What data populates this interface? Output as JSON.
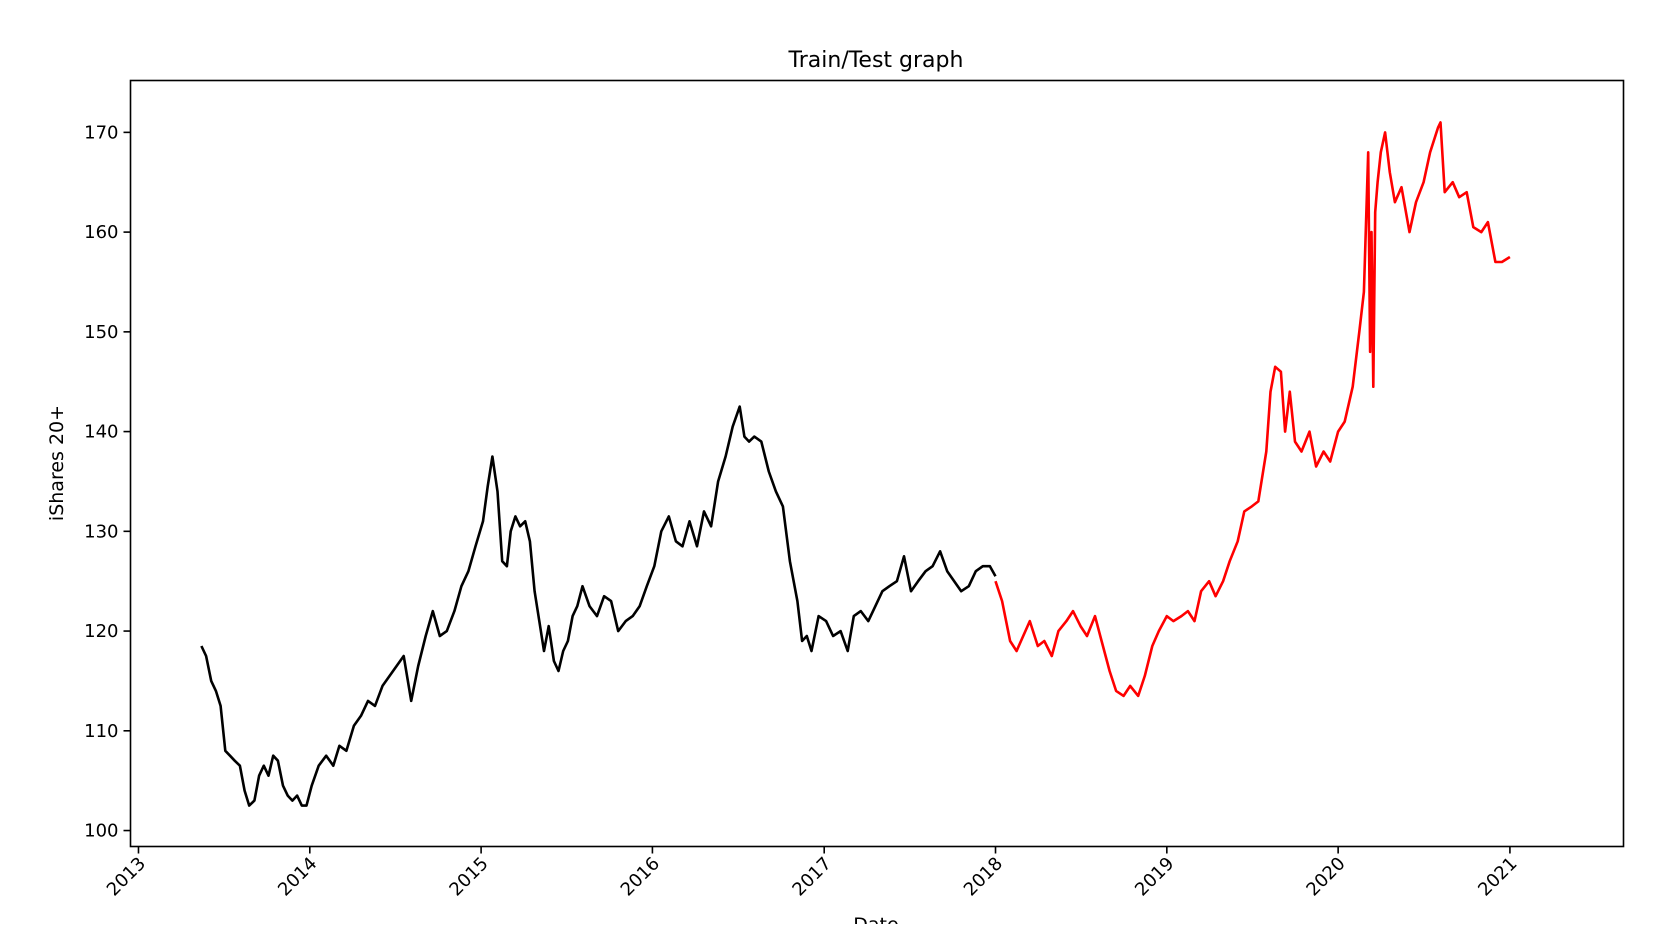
{
  "chart_data": {
    "type": "line",
    "title": "Train/Test graph",
    "xlabel": "Date",
    "ylabel": "iShares 20+",
    "xlim": [
      "2012-12-15",
      "2021-08-31"
    ],
    "ylim": [
      98.4,
      175.2
    ],
    "x_ticks": [
      "2013",
      "2014",
      "2015",
      "2016",
      "2017",
      "2018",
      "2019",
      "2020",
      "2021"
    ],
    "y_ticks": [
      100,
      110,
      120,
      130,
      140,
      150,
      160,
      170
    ],
    "grid": false,
    "legend": "none",
    "series": [
      {
        "color": "#000000",
        "x": [
          "2013-05-15",
          "2013-05-25",
          "2013-06-05",
          "2013-06-15",
          "2013-06-25",
          "2013-07-05",
          "2013-07-15",
          "2013-07-25",
          "2013-08-05",
          "2013-08-15",
          "2013-08-25",
          "2013-09-05",
          "2013-09-15",
          "2013-09-25",
          "2013-10-05",
          "2013-10-15",
          "2013-10-25",
          "2013-11-05",
          "2013-11-15",
          "2013-11-25",
          "2013-12-05",
          "2013-12-15",
          "2013-12-25",
          "2014-01-05",
          "2014-01-20",
          "2014-02-05",
          "2014-02-20",
          "2014-03-05",
          "2014-03-20",
          "2014-04-05",
          "2014-04-20",
          "2014-05-05",
          "2014-05-20",
          "2014-06-05",
          "2014-06-20",
          "2014-07-05",
          "2014-07-20",
          "2014-08-05",
          "2014-08-20",
          "2014-09-05",
          "2014-09-20",
          "2014-10-05",
          "2014-10-20",
          "2014-11-05",
          "2014-11-20",
          "2014-12-05",
          "2014-12-20",
          "2015-01-05",
          "2015-01-15",
          "2015-01-25",
          "2015-02-05",
          "2015-02-15",
          "2015-02-25",
          "2015-03-05",
          "2015-03-15",
          "2015-03-25",
          "2015-04-05",
          "2015-04-15",
          "2015-04-25",
          "2015-05-05",
          "2015-05-15",
          "2015-05-25",
          "2015-06-05",
          "2015-06-15",
          "2015-06-25",
          "2015-07-05",
          "2015-07-15",
          "2015-07-25",
          "2015-08-05",
          "2015-08-20",
          "2015-09-05",
          "2015-09-20",
          "2015-10-05",
          "2015-10-20",
          "2015-11-05",
          "2015-11-20",
          "2015-12-05",
          "2015-12-20",
          "2016-01-05",
          "2016-01-20",
          "2016-02-05",
          "2016-02-20",
          "2016-03-05",
          "2016-03-20",
          "2016-04-05",
          "2016-04-20",
          "2016-05-05",
          "2016-05-20",
          "2016-06-05",
          "2016-06-20",
          "2016-07-05",
          "2016-07-15",
          "2016-07-25",
          "2016-08-05",
          "2016-08-20",
          "2016-09-05",
          "2016-09-20",
          "2016-10-05",
          "2016-10-20",
          "2016-11-05",
          "2016-11-15",
          "2016-11-25",
          "2016-12-05",
          "2016-12-20",
          "2017-01-05",
          "2017-01-20",
          "2017-02-05",
          "2017-02-20",
          "2017-03-05",
          "2017-03-20",
          "2017-04-05",
          "2017-04-20",
          "2017-05-05",
          "2017-05-20",
          "2017-06-05",
          "2017-06-20",
          "2017-07-05",
          "2017-07-20",
          "2017-08-05",
          "2017-08-20",
          "2017-09-05",
          "2017-09-20",
          "2017-10-05",
          "2017-10-20",
          "2017-11-05",
          "2017-11-20",
          "2017-12-05",
          "2017-12-20",
          "2018-01-01"
        ],
        "values": [
          118.5,
          117.5,
          115.0,
          114.0,
          112.5,
          108.0,
          107.5,
          107.0,
          106.5,
          104.0,
          102.5,
          103.0,
          105.5,
          106.5,
          105.5,
          107.5,
          107.0,
          104.5,
          103.5,
          103.0,
          103.5,
          102.5,
          102.5,
          104.5,
          106.5,
          107.5,
          106.5,
          108.5,
          108.0,
          110.5,
          111.5,
          113.0,
          112.5,
          114.5,
          115.5,
          116.5,
          117.5,
          113.0,
          116.5,
          119.5,
          122.0,
          119.5,
          120.0,
          122.0,
          124.5,
          126.0,
          128.5,
          131.0,
          134.5,
          137.5,
          134.0,
          127.0,
          126.5,
          130.0,
          131.5,
          130.5,
          131.0,
          129.0,
          124.0,
          121.0,
          118.0,
          120.5,
          117.0,
          116.0,
          118.0,
          119.0,
          121.5,
          122.5,
          124.5,
          122.5,
          121.5,
          123.5,
          123.0,
          120.0,
          121.0,
          121.5,
          122.5,
          124.5,
          126.5,
          130.0,
          131.5,
          129.0,
          128.5,
          131.0,
          128.5,
          132.0,
          130.5,
          135.0,
          137.5,
          140.5,
          142.5,
          139.5,
          139.0,
          139.5,
          139.0,
          136.0,
          134.0,
          132.5,
          127.0,
          123.0,
          119.0,
          119.5,
          118.0,
          121.5,
          121.0,
          119.5,
          120.0,
          118.0,
          121.5,
          122.0,
          121.0,
          122.5,
          124.0,
          124.5,
          125.0,
          127.5,
          124.0,
          125.0,
          126.0,
          126.5,
          128.0,
          126.0,
          125.0,
          124.0,
          124.5,
          126.0,
          126.5,
          126.5,
          125.5
        ]
      },
      {
        "color": "#ff0000",
        "x": [
          "2018-01-01",
          "2018-01-15",
          "2018-02-01",
          "2018-02-15",
          "2018-03-01",
          "2018-03-15",
          "2018-04-01",
          "2018-04-15",
          "2018-05-01",
          "2018-05-15",
          "2018-06-01",
          "2018-06-15",
          "2018-07-01",
          "2018-07-15",
          "2018-08-01",
          "2018-08-15",
          "2018-09-01",
          "2018-09-15",
          "2018-10-01",
          "2018-10-15",
          "2018-11-01",
          "2018-11-15",
          "2018-12-01",
          "2018-12-15",
          "2019-01-01",
          "2019-01-15",
          "2019-02-01",
          "2019-02-15",
          "2019-03-01",
          "2019-03-15",
          "2019-04-01",
          "2019-04-15",
          "2019-05-01",
          "2019-05-15",
          "2019-06-01",
          "2019-06-15",
          "2019-07-01",
          "2019-07-15",
          "2019-08-01",
          "2019-08-10",
          "2019-08-20",
          "2019-09-01",
          "2019-09-10",
          "2019-09-20",
          "2019-10-01",
          "2019-10-15",
          "2019-11-01",
          "2019-11-15",
          "2019-12-01",
          "2019-12-15",
          "2020-01-01",
          "2020-01-15",
          "2020-02-01",
          "2020-02-15",
          "2020-02-25",
          "2020-03-05",
          "2020-03-09",
          "2020-03-12",
          "2020-03-16",
          "2020-03-20",
          "2020-03-25",
          "2020-04-01",
          "2020-04-10",
          "2020-04-20",
          "2020-05-01",
          "2020-05-15",
          "2020-06-01",
          "2020-06-15",
          "2020-07-01",
          "2020-07-15",
          "2020-08-01",
          "2020-08-06",
          "2020-08-15",
          "2020-09-01",
          "2020-09-15",
          "2020-10-01",
          "2020-10-15",
          "2020-11-01",
          "2020-11-15",
          "2020-12-01",
          "2020-12-15",
          "2021-01-01"
        ],
        "values": [
          125.0,
          123.0,
          119.0,
          118.0,
          119.5,
          121.0,
          118.5,
          119.0,
          117.5,
          120.0,
          121.0,
          122.0,
          120.5,
          119.5,
          121.5,
          119.0,
          116.0,
          114.0,
          113.5,
          114.5,
          113.5,
          115.5,
          118.5,
          120.0,
          121.5,
          121.0,
          121.5,
          122.0,
          121.0,
          124.0,
          125.0,
          123.5,
          125.0,
          127.0,
          129.0,
          132.0,
          132.5,
          133.0,
          138.0,
          144.0,
          146.5,
          146.0,
          140.0,
          144.0,
          139.0,
          138.0,
          140.0,
          136.5,
          138.0,
          137.0,
          140.0,
          141.0,
          144.5,
          150.0,
          154.0,
          168.0,
          148.0,
          160.0,
          144.5,
          162.0,
          165.0,
          168.0,
          170.0,
          166.0,
          163.0,
          164.5,
          160.0,
          163.0,
          165.0,
          168.0,
          170.5,
          171.0,
          164.0,
          165.0,
          163.5,
          164.0,
          160.5,
          160.0,
          161.0,
          157.0,
          157.0,
          157.5
        ]
      }
    ]
  }
}
